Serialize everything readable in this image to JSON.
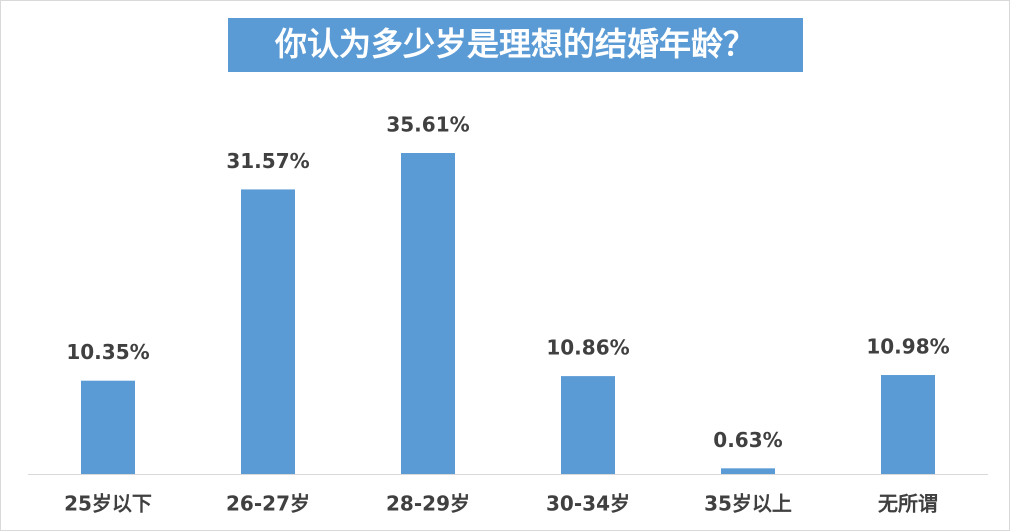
{
  "chart_data": {
    "type": "bar",
    "title": "你认为多少岁是理想的结婚年龄？",
    "categories": [
      "25岁以下",
      "26-27岁",
      "28-29岁",
      "30-34岁",
      "35岁以上",
      "无所谓"
    ],
    "values": [
      10.35,
      31.57,
      35.61,
      10.86,
      0.63,
      10.98
    ],
    "value_labels": [
      "10.35%",
      "31.57%",
      "35.61%",
      "10.86%",
      "0.63%",
      "10.98%"
    ],
    "color": "#5b9bd5"
  }
}
